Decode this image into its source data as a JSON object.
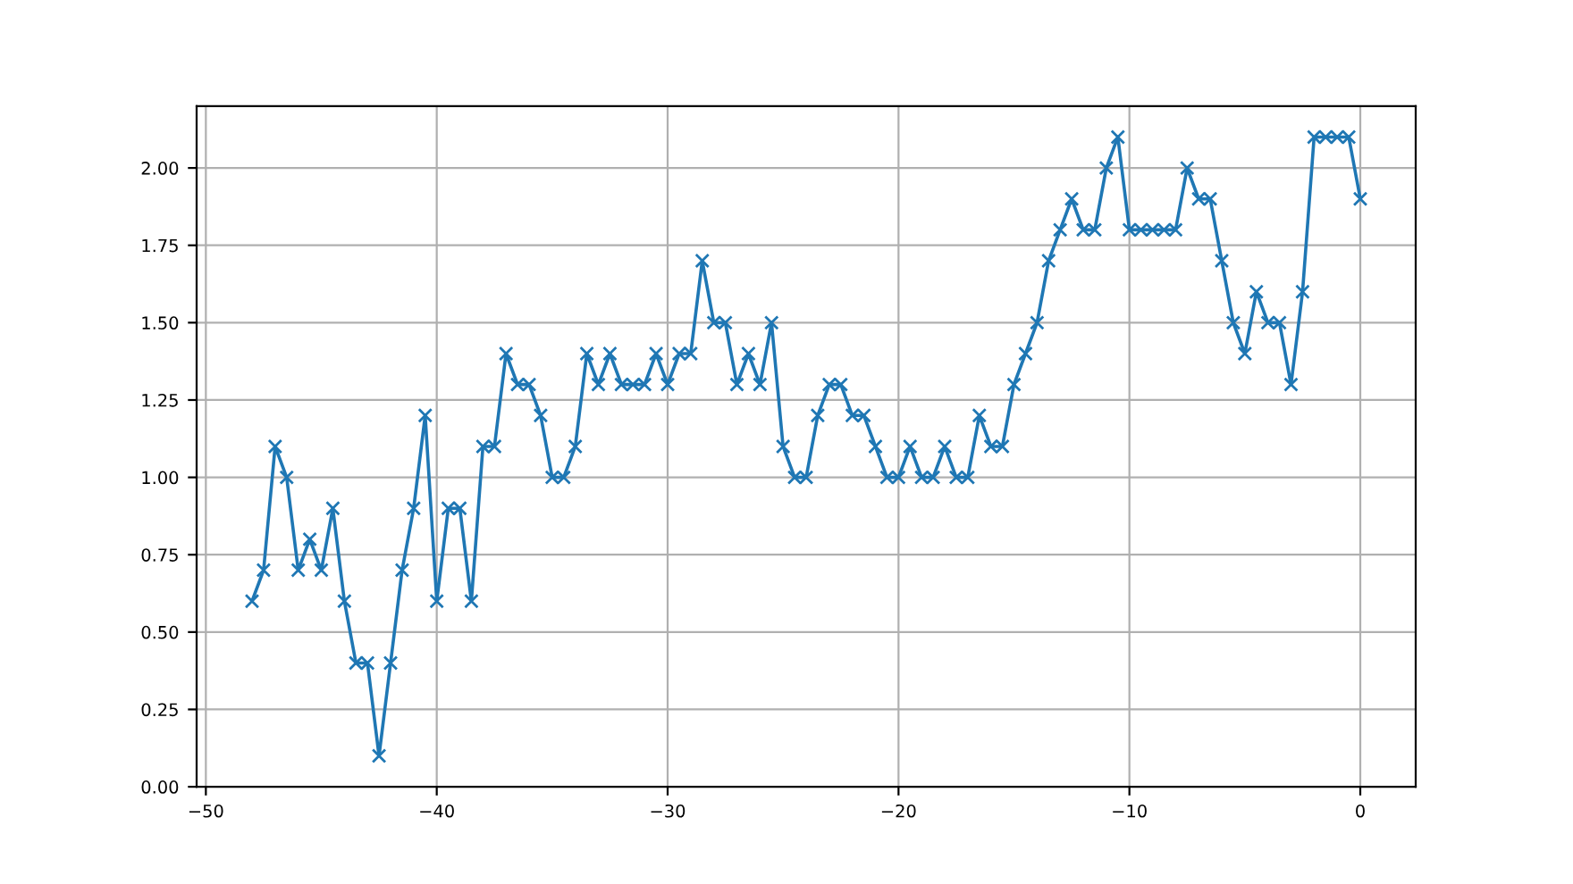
{
  "chart_data": {
    "type": "line",
    "x": [
      -48,
      -47.5,
      -47,
      -46.5,
      -46,
      -45.5,
      -45,
      -44.5,
      -44,
      -43.5,
      -43,
      -42.5,
      -42,
      -41.5,
      -41,
      -40.5,
      -40,
      -39.5,
      -39,
      -38.5,
      -38,
      -37.5,
      -37,
      -36.5,
      -36,
      -35.5,
      -35,
      -34.5,
      -34,
      -33.5,
      -33,
      -32.5,
      -32,
      -31.5,
      -31,
      -30.5,
      -30,
      -29.5,
      -29,
      -28.5,
      -28,
      -27.5,
      -27,
      -26.5,
      -26,
      -25.5,
      -25,
      -24.5,
      -24,
      -23.5,
      -23,
      -22.5,
      -22,
      -21.5,
      -21,
      -20.5,
      -20,
      -19.5,
      -19,
      -18.5,
      -18,
      -17.5,
      -17,
      -16.5,
      -16,
      -15.5,
      -15,
      -14.5,
      -14,
      -13.5,
      -13,
      -12.5,
      -12,
      -11.5,
      -11,
      -10.5,
      -10,
      -9.5,
      -9,
      -8.5,
      -8,
      -7.5,
      -7,
      -6.5,
      -6,
      -5.5,
      -5,
      -4.5,
      -4,
      -3.5,
      -3,
      -2.5,
      -2,
      -1.5,
      -1,
      -0.5,
      0
    ],
    "series": [
      {
        "color": "#1f77b4",
        "values": [
          0.6,
          0.7,
          1.1,
          1.0,
          0.7,
          0.8,
          0.7,
          0.9,
          0.6,
          0.4,
          0.4,
          0.1,
          0.4,
          0.7,
          0.9,
          1.2,
          0.6,
          0.9,
          0.9,
          0.6,
          1.1,
          1.1,
          1.4,
          1.3,
          1.3,
          1.2,
          1.0,
          1.0,
          1.1,
          1.4,
          1.3,
          1.4,
          1.3,
          1.3,
          1.3,
          1.4,
          1.3,
          1.4,
          1.4,
          1.7,
          1.5,
          1.5,
          1.3,
          1.4,
          1.3,
          1.5,
          1.1,
          1.0,
          1.0,
          1.2,
          1.3,
          1.3,
          1.2,
          1.2,
          1.1,
          1.0,
          1.0,
          1.1,
          1.0,
          1.0,
          1.1,
          1.0,
          1.0,
          1.2,
          1.1,
          1.1,
          1.3,
          1.4,
          1.5,
          1.7,
          1.8,
          1.9,
          1.8,
          1.8,
          2.0,
          2.1,
          1.8,
          1.8,
          1.8,
          1.8,
          1.8,
          2.0,
          1.9,
          1.9,
          1.7,
          1.5,
          1.4,
          1.6,
          1.5,
          1.5,
          1.3,
          1.6,
          2.1,
          2.1,
          2.1,
          2.1,
          1.9
        ]
      }
    ],
    "xlim": [
      -50.4,
      2.4
    ],
    "xticks": [
      {
        "value": -50,
        "label": "−50"
      },
      {
        "value": -40,
        "label": "−40"
      },
      {
        "value": -30,
        "label": "−30"
      },
      {
        "value": -20,
        "label": "−20"
      },
      {
        "value": -10,
        "label": "−10"
      },
      0
    ],
    "ylim": [
      0,
      2.2
    ],
    "yticks": [
      {
        "value": 0,
        "label": "0.00"
      },
      {
        "value": 0.25,
        "label": "0.25"
      },
      {
        "value": 0.5,
        "label": "0.50"
      },
      {
        "value": 0.75,
        "label": "0.75"
      },
      {
        "value": 1.0,
        "label": "1.00"
      },
      {
        "value": 1.25,
        "label": "1.25"
      },
      {
        "value": 1.5,
        "label": "1.50"
      },
      {
        "value": 1.75,
        "label": "1.75"
      },
      {
        "value": 2.0,
        "label": "2.00"
      }
    ],
    "grid": true,
    "marker": "cross",
    "line_style": "solid"
  }
}
